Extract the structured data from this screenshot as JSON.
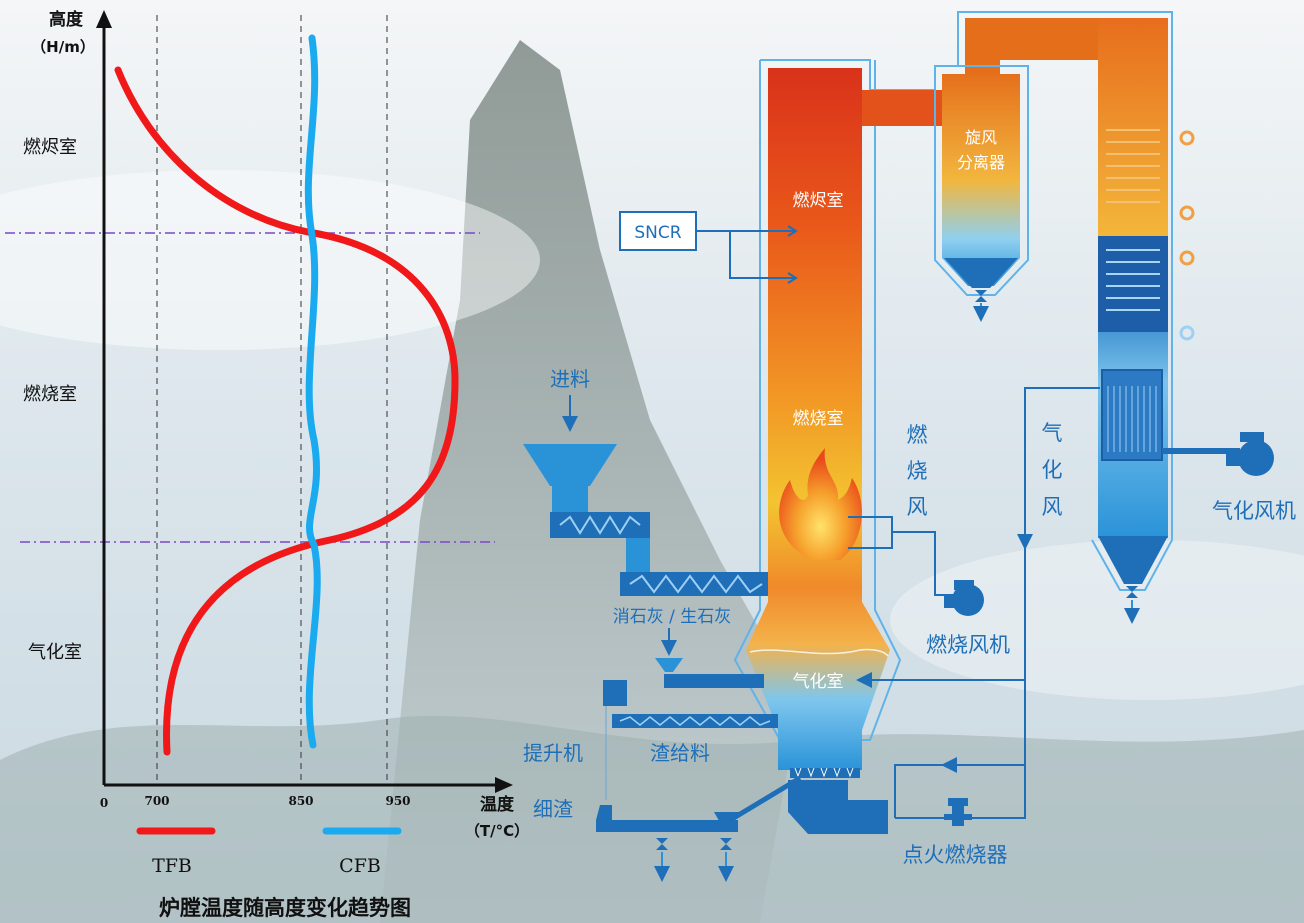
{
  "chart": {
    "y_axis_label_1": "高度",
    "y_axis_label_2": "（H/m）",
    "x_axis_label_1": "温度",
    "x_axis_label_2": "（T/°C）",
    "x_ticks": [
      "0",
      "700",
      "850",
      "950"
    ],
    "zones": [
      "燃烬室",
      "燃烧室",
      "气化室"
    ],
    "legend": [
      {
        "label": "TFB",
        "color": "#f01818"
      },
      {
        "label": "CFB",
        "color": "#1aaaf0"
      }
    ],
    "caption": "炉膛温度随高度变化趋势图"
  },
  "chart_data": {
    "type": "line",
    "x_ticks_values": [
      0,
      700,
      850,
      950
    ],
    "series": [
      {
        "name": "TFB",
        "color": "#f01818"
      },
      {
        "name": "CFB",
        "color": "#1aaaf0"
      }
    ]
  },
  "process": {
    "snc": "SNCR",
    "jinliao": "进料",
    "furnace_top": "燃烬室",
    "furnace_mid": "燃烧室",
    "furnace_bottom": "气化室",
    "cyclone_1": "旋风",
    "cyclone_2": "分离器",
    "burn_air": [
      "燃",
      "烧",
      "风"
    ],
    "gas_air": [
      "气",
      "化",
      "风"
    ],
    "gas_fan": "气化风机",
    "burn_fan": "燃烧风机",
    "limestone": "消石灰 / 生石灰",
    "elevator": "提升机",
    "slag_feed": "渣给料",
    "fine_slag": "细渣",
    "igniter": "点火燃烧器"
  },
  "colors": {
    "blue_dark": "#1f6fb8",
    "blue_mid": "#2a93d8",
    "orange": "#e56a18",
    "red": "#e0351a",
    "yellow": "#f2c43a"
  }
}
